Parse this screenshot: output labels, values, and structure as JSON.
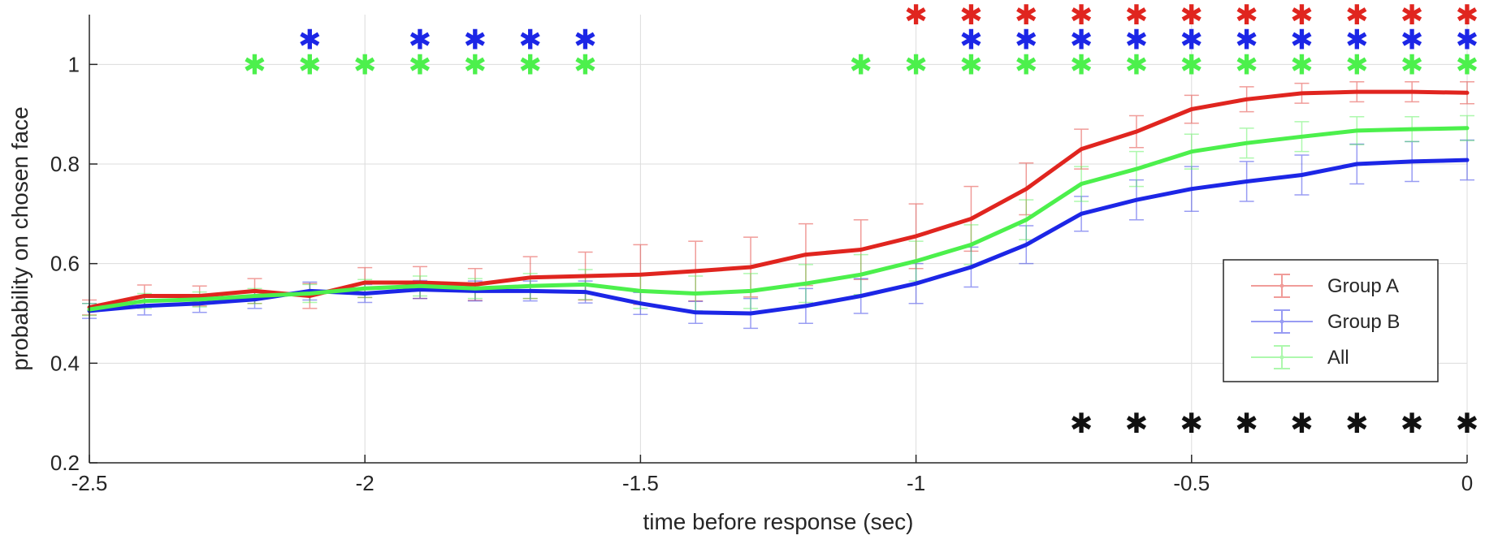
{
  "chart_data": {
    "type": "line",
    "title": "",
    "xlabel": "time before response (sec)",
    "ylabel": "probability on chosen face",
    "xlim": [
      -2.5,
      0
    ],
    "ylim": [
      0.2,
      1.1
    ],
    "xticks": [
      -2.5,
      -2,
      -1.5,
      -1,
      -0.5,
      0
    ],
    "xtick_labels": [
      "-2.5",
      "-2",
      "-1.5",
      "-1",
      "-0.5",
      "0"
    ],
    "yticks": [
      0.2,
      0.4,
      0.6,
      0.8,
      1
    ],
    "ytick_labels": [
      "0.2",
      "0.4",
      "0.6",
      "0.8",
      "1"
    ],
    "grid": true,
    "legend_position": "lower-right",
    "x": [
      -2.5,
      -2.4,
      -2.3,
      -2.2,
      -2.1,
      -2.0,
      -1.9,
      -1.8,
      -1.7,
      -1.6,
      -1.5,
      -1.4,
      -1.3,
      -1.2,
      -1.1,
      -1.0,
      -0.9,
      -0.8,
      -0.7,
      -0.6,
      -0.5,
      -0.4,
      -0.3,
      -0.2,
      -0.1,
      0.0
    ],
    "series": [
      {
        "name": "Group A",
        "color": "#e0251f",
        "values": [
          0.512,
          0.535,
          0.535,
          0.545,
          0.535,
          0.562,
          0.562,
          0.558,
          0.572,
          0.575,
          0.578,
          0.585,
          0.593,
          0.618,
          0.628,
          0.655,
          0.69,
          0.75,
          0.83,
          0.865,
          0.91,
          0.93,
          0.942,
          0.945,
          0.945,
          0.943
        ],
        "errors": [
          0.015,
          0.022,
          0.02,
          0.025,
          0.025,
          0.03,
          0.032,
          0.032,
          0.042,
          0.048,
          0.06,
          0.06,
          0.06,
          0.062,
          0.06,
          0.065,
          0.065,
          0.052,
          0.04,
          0.032,
          0.028,
          0.025,
          0.02,
          0.02,
          0.02,
          0.022
        ]
      },
      {
        "name": "Group B",
        "color": "#1c26e6",
        "values": [
          0.505,
          0.515,
          0.52,
          0.528,
          0.545,
          0.54,
          0.548,
          0.545,
          0.545,
          0.543,
          0.52,
          0.502,
          0.5,
          0.515,
          0.535,
          0.56,
          0.593,
          0.638,
          0.7,
          0.728,
          0.75,
          0.765,
          0.778,
          0.8,
          0.805,
          0.808
        ],
        "errors": [
          0.015,
          0.018,
          0.018,
          0.018,
          0.018,
          0.018,
          0.018,
          0.02,
          0.02,
          0.022,
          0.022,
          0.022,
          0.03,
          0.035,
          0.035,
          0.04,
          0.04,
          0.038,
          0.035,
          0.04,
          0.045,
          0.04,
          0.04,
          0.04,
          0.04,
          0.04
        ]
      },
      {
        "name": "All",
        "color": "#4cf04c",
        "values": [
          0.508,
          0.525,
          0.528,
          0.535,
          0.54,
          0.55,
          0.555,
          0.55,
          0.555,
          0.558,
          0.545,
          0.54,
          0.545,
          0.56,
          0.578,
          0.605,
          0.638,
          0.688,
          0.76,
          0.79,
          0.825,
          0.842,
          0.855,
          0.867,
          0.87,
          0.872
        ],
        "errors": [
          0.012,
          0.015,
          0.015,
          0.015,
          0.018,
          0.018,
          0.02,
          0.02,
          0.025,
          0.03,
          0.035,
          0.035,
          0.035,
          0.038,
          0.04,
          0.04,
          0.04,
          0.04,
          0.035,
          0.035,
          0.035,
          0.03,
          0.03,
          0.028,
          0.025,
          0.025
        ]
      }
    ],
    "significance_markers": [
      {
        "color": "#e0251f",
        "y": 1.1,
        "x": [
          -1.0,
          -0.9,
          -0.8,
          -0.7,
          -0.6,
          -0.5,
          -0.4,
          -0.3,
          -0.2,
          -0.1,
          0.0
        ]
      },
      {
        "color": "#1c26e6",
        "y": 1.05,
        "x": [
          -2.1,
          -1.9,
          -1.8,
          -1.7,
          -1.6,
          -0.9,
          -0.8,
          -0.7,
          -0.6,
          -0.5,
          -0.4,
          -0.3,
          -0.2,
          -0.1,
          0.0
        ]
      },
      {
        "color": "#4cf04c",
        "y": 1.0,
        "x": [
          -2.2,
          -2.1,
          -2.0,
          -1.9,
          -1.8,
          -1.7,
          -1.6,
          -1.1,
          -1.0,
          -0.9,
          -0.8,
          -0.7,
          -0.6,
          -0.5,
          -0.4,
          -0.3,
          -0.2,
          -0.1,
          0.0
        ]
      },
      {
        "color": "#111111",
        "y": 0.28,
        "x": [
          -0.7,
          -0.6,
          -0.5,
          -0.4,
          -0.3,
          -0.2,
          -0.1,
          0.0
        ]
      }
    ],
    "marker_symbol": "✱"
  }
}
